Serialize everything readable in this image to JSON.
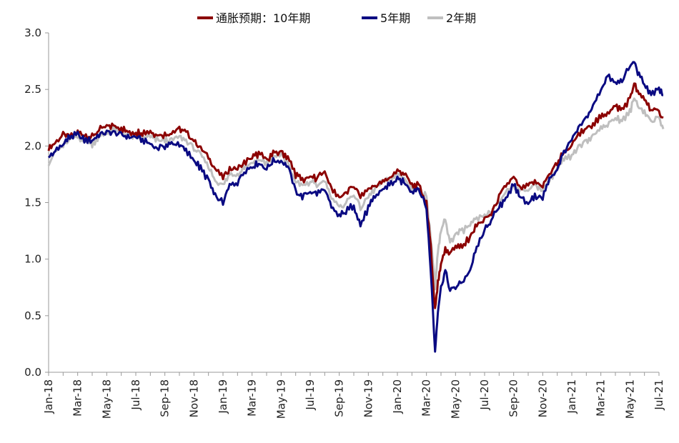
{
  "chart_data": {
    "type": "line",
    "title": "",
    "xlabel": "",
    "ylabel": "",
    "ylim": [
      0,
      3
    ],
    "yticks": [
      "0.0",
      "0.5",
      "1.0",
      "1.5",
      "2.0",
      "2.5",
      "3.0"
    ],
    "xlim": [
      "2018-01",
      "2021-07"
    ],
    "xticks": [
      "Jan-18",
      "Mar-18",
      "May-18",
      "Jul-18",
      "Sep-18",
      "Nov-18",
      "Jan-19",
      "Mar-19",
      "May-19",
      "Jul-19",
      "Sep-19",
      "Nov-19",
      "Jan-20",
      "Mar-20",
      "May-20",
      "Jul-20",
      "Sep-20",
      "Nov-20",
      "Jan-21",
      "Mar-21",
      "May-21",
      "Jul-21"
    ],
    "grid": false,
    "legend_position": "top-center",
    "series": [
      {
        "name": "通胀预期：10年期",
        "color": "#8b0000",
        "points": [
          [
            "2018-01-01",
            1.98
          ],
          [
            "2018-01-15",
            2.03
          ],
          [
            "2018-02-01",
            2.1
          ],
          [
            "2018-02-15",
            2.08
          ],
          [
            "2018-03-01",
            2.12
          ],
          [
            "2018-03-15",
            2.1
          ],
          [
            "2018-04-01",
            2.08
          ],
          [
            "2018-04-15",
            2.14
          ],
          [
            "2018-05-01",
            2.17
          ],
          [
            "2018-05-15",
            2.18
          ],
          [
            "2018-06-01",
            2.16
          ],
          [
            "2018-06-15",
            2.12
          ],
          [
            "2018-07-01",
            2.12
          ],
          [
            "2018-07-15",
            2.12
          ],
          [
            "2018-08-01",
            2.13
          ],
          [
            "2018-08-15",
            2.1
          ],
          [
            "2018-09-01",
            2.1
          ],
          [
            "2018-09-15",
            2.12
          ],
          [
            "2018-10-01",
            2.15
          ],
          [
            "2018-10-15",
            2.12
          ],
          [
            "2018-11-01",
            2.05
          ],
          [
            "2018-11-15",
            1.98
          ],
          [
            "2018-12-01",
            1.9
          ],
          [
            "2018-12-15",
            1.8
          ],
          [
            "2019-01-01",
            1.72
          ],
          [
            "2019-01-15",
            1.8
          ],
          [
            "2019-02-01",
            1.8
          ],
          [
            "2019-02-15",
            1.85
          ],
          [
            "2019-03-01",
            1.9
          ],
          [
            "2019-03-15",
            1.93
          ],
          [
            "2019-04-01",
            1.88
          ],
          [
            "2019-04-15",
            1.93
          ],
          [
            "2019-05-01",
            1.95
          ],
          [
            "2019-05-15",
            1.9
          ],
          [
            "2019-06-01",
            1.75
          ],
          [
            "2019-06-15",
            1.7
          ],
          [
            "2019-07-01",
            1.72
          ],
          [
            "2019-07-15",
            1.72
          ],
          [
            "2019-08-01",
            1.78
          ],
          [
            "2019-08-15",
            1.62
          ],
          [
            "2019-09-01",
            1.55
          ],
          [
            "2019-09-15",
            1.58
          ],
          [
            "2019-10-01",
            1.65
          ],
          [
            "2019-10-15",
            1.55
          ],
          [
            "2019-11-01",
            1.62
          ],
          [
            "2019-11-15",
            1.65
          ],
          [
            "2019-12-01",
            1.68
          ],
          [
            "2019-12-15",
            1.72
          ],
          [
            "2020-01-01",
            1.78
          ],
          [
            "2020-01-15",
            1.76
          ],
          [
            "2020-02-01",
            1.65
          ],
          [
            "2020-02-15",
            1.65
          ],
          [
            "2020-03-01",
            1.5
          ],
          [
            "2020-03-10",
            1.1
          ],
          [
            "2020-03-19",
            0.55
          ],
          [
            "2020-03-25",
            0.8
          ],
          [
            "2020-04-01",
            0.95
          ],
          [
            "2020-04-10",
            1.1
          ],
          [
            "2020-04-20",
            1.05
          ],
          [
            "2020-05-01",
            1.12
          ],
          [
            "2020-05-15",
            1.1
          ],
          [
            "2020-06-01",
            1.2
          ],
          [
            "2020-06-15",
            1.3
          ],
          [
            "2020-07-01",
            1.35
          ],
          [
            "2020-07-15",
            1.4
          ],
          [
            "2020-08-01",
            1.55
          ],
          [
            "2020-08-15",
            1.65
          ],
          [
            "2020-09-01",
            1.72
          ],
          [
            "2020-09-15",
            1.62
          ],
          [
            "2020-10-01",
            1.65
          ],
          [
            "2020-10-15",
            1.68
          ],
          [
            "2020-11-01",
            1.65
          ],
          [
            "2020-11-15",
            1.75
          ],
          [
            "2020-12-01",
            1.85
          ],
          [
            "2020-12-15",
            1.95
          ],
          [
            "2021-01-01",
            2.0
          ],
          [
            "2021-01-15",
            2.1
          ],
          [
            "2021-02-01",
            2.15
          ],
          [
            "2021-02-15",
            2.2
          ],
          [
            "2021-03-01",
            2.25
          ],
          [
            "2021-03-15",
            2.3
          ],
          [
            "2021-04-01",
            2.35
          ],
          [
            "2021-04-15",
            2.32
          ],
          [
            "2021-05-01",
            2.42
          ],
          [
            "2021-05-10",
            2.55
          ],
          [
            "2021-05-20",
            2.45
          ],
          [
            "2021-06-01",
            2.42
          ],
          [
            "2021-06-15",
            2.32
          ],
          [
            "2021-07-01",
            2.3
          ],
          [
            "2021-07-10",
            2.25
          ]
        ]
      },
      {
        "name": "5年期",
        "color": "#0a0a82",
        "points": [
          [
            "2018-01-01",
            1.9
          ],
          [
            "2018-01-15",
            1.95
          ],
          [
            "2018-02-01",
            2.02
          ],
          [
            "2018-02-15",
            2.08
          ],
          [
            "2018-03-01",
            2.1
          ],
          [
            "2018-03-15",
            2.05
          ],
          [
            "2018-04-01",
            2.05
          ],
          [
            "2018-04-15",
            2.1
          ],
          [
            "2018-05-01",
            2.12
          ],
          [
            "2018-05-15",
            2.12
          ],
          [
            "2018-06-01",
            2.1
          ],
          [
            "2018-06-15",
            2.08
          ],
          [
            "2018-07-01",
            2.08
          ],
          [
            "2018-07-15",
            2.05
          ],
          [
            "2018-08-01",
            2.02
          ],
          [
            "2018-08-15",
            1.98
          ],
          [
            "2018-09-01",
            2.0
          ],
          [
            "2018-09-15",
            2.02
          ],
          [
            "2018-10-01",
            2.02
          ],
          [
            "2018-10-15",
            1.95
          ],
          [
            "2018-11-01",
            1.88
          ],
          [
            "2018-11-15",
            1.8
          ],
          [
            "2018-12-01",
            1.7
          ],
          [
            "2018-12-15",
            1.55
          ],
          [
            "2019-01-01",
            1.5
          ],
          [
            "2019-01-15",
            1.65
          ],
          [
            "2019-02-01",
            1.68
          ],
          [
            "2019-02-15",
            1.78
          ],
          [
            "2019-03-01",
            1.82
          ],
          [
            "2019-03-15",
            1.85
          ],
          [
            "2019-04-01",
            1.8
          ],
          [
            "2019-04-15",
            1.87
          ],
          [
            "2019-05-01",
            1.87
          ],
          [
            "2019-05-15",
            1.82
          ],
          [
            "2019-06-01",
            1.6
          ],
          [
            "2019-06-15",
            1.55
          ],
          [
            "2019-07-01",
            1.6
          ],
          [
            "2019-07-15",
            1.58
          ],
          [
            "2019-08-01",
            1.62
          ],
          [
            "2019-08-15",
            1.45
          ],
          [
            "2019-09-01",
            1.38
          ],
          [
            "2019-09-15",
            1.42
          ],
          [
            "2019-10-01",
            1.48
          ],
          [
            "2019-10-15",
            1.3
          ],
          [
            "2019-11-01",
            1.45
          ],
          [
            "2019-11-15",
            1.55
          ],
          [
            "2019-12-01",
            1.62
          ],
          [
            "2019-12-15",
            1.66
          ],
          [
            "2020-01-01",
            1.7
          ],
          [
            "2020-01-15",
            1.68
          ],
          [
            "2020-02-01",
            1.6
          ],
          [
            "2020-02-15",
            1.63
          ],
          [
            "2020-03-01",
            1.45
          ],
          [
            "2020-03-10",
            0.9
          ],
          [
            "2020-03-19",
            0.18
          ],
          [
            "2020-03-25",
            0.55
          ],
          [
            "2020-04-01",
            0.75
          ],
          [
            "2020-04-10",
            0.9
          ],
          [
            "2020-04-20",
            0.72
          ],
          [
            "2020-05-01",
            0.75
          ],
          [
            "2020-05-15",
            0.8
          ],
          [
            "2020-06-01",
            0.9
          ],
          [
            "2020-06-15",
            1.1
          ],
          [
            "2020-07-01",
            1.25
          ],
          [
            "2020-07-15",
            1.35
          ],
          [
            "2020-08-01",
            1.45
          ],
          [
            "2020-08-15",
            1.55
          ],
          [
            "2020-09-01",
            1.65
          ],
          [
            "2020-09-15",
            1.55
          ],
          [
            "2020-10-01",
            1.5
          ],
          [
            "2020-10-15",
            1.55
          ],
          [
            "2020-11-01",
            1.55
          ],
          [
            "2020-11-15",
            1.7
          ],
          [
            "2020-12-01",
            1.8
          ],
          [
            "2020-12-15",
            1.95
          ],
          [
            "2021-01-01",
            2.05
          ],
          [
            "2021-01-15",
            2.15
          ],
          [
            "2021-02-01",
            2.25
          ],
          [
            "2021-02-15",
            2.35
          ],
          [
            "2021-03-01",
            2.5
          ],
          [
            "2021-03-15",
            2.62
          ],
          [
            "2021-04-01",
            2.55
          ],
          [
            "2021-04-15",
            2.58
          ],
          [
            "2021-05-01",
            2.7
          ],
          [
            "2021-05-10",
            2.75
          ],
          [
            "2021-05-20",
            2.62
          ],
          [
            "2021-06-01",
            2.55
          ],
          [
            "2021-06-15",
            2.45
          ],
          [
            "2021-07-01",
            2.5
          ],
          [
            "2021-07-10",
            2.45
          ]
        ]
      },
      {
        "name": "2年期",
        "color": "#bfbfbf",
        "points": [
          [
            "2018-01-01",
            1.85
          ],
          [
            "2018-01-15",
            1.95
          ],
          [
            "2018-02-01",
            2.0
          ],
          [
            "2018-02-15",
            2.05
          ],
          [
            "2018-03-01",
            2.08
          ],
          [
            "2018-03-15",
            2.05
          ],
          [
            "2018-04-01",
            2.02
          ],
          [
            "2018-04-15",
            2.08
          ],
          [
            "2018-05-01",
            2.12
          ],
          [
            "2018-05-15",
            2.15
          ],
          [
            "2018-06-01",
            2.12
          ],
          [
            "2018-06-15",
            2.1
          ],
          [
            "2018-07-01",
            2.08
          ],
          [
            "2018-07-15",
            2.08
          ],
          [
            "2018-08-01",
            2.08
          ],
          [
            "2018-08-15",
            2.05
          ],
          [
            "2018-09-01",
            2.05
          ],
          [
            "2018-09-15",
            2.05
          ],
          [
            "2018-10-01",
            2.08
          ],
          [
            "2018-10-15",
            2.05
          ],
          [
            "2018-11-01",
            1.98
          ],
          [
            "2018-11-15",
            1.92
          ],
          [
            "2018-12-01",
            1.82
          ],
          [
            "2018-12-15",
            1.7
          ],
          [
            "2019-01-01",
            1.65
          ],
          [
            "2019-01-15",
            1.75
          ],
          [
            "2019-02-01",
            1.75
          ],
          [
            "2019-02-15",
            1.82
          ],
          [
            "2019-03-01",
            1.85
          ],
          [
            "2019-03-15",
            1.88
          ],
          [
            "2019-04-01",
            1.85
          ],
          [
            "2019-04-15",
            1.9
          ],
          [
            "2019-05-01",
            1.92
          ],
          [
            "2019-05-15",
            1.85
          ],
          [
            "2019-06-01",
            1.68
          ],
          [
            "2019-06-15",
            1.65
          ],
          [
            "2019-07-01",
            1.68
          ],
          [
            "2019-07-15",
            1.65
          ],
          [
            "2019-08-01",
            1.7
          ],
          [
            "2019-08-15",
            1.55
          ],
          [
            "2019-09-01",
            1.45
          ],
          [
            "2019-09-15",
            1.5
          ],
          [
            "2019-10-01",
            1.58
          ],
          [
            "2019-10-15",
            1.45
          ],
          [
            "2019-11-01",
            1.55
          ],
          [
            "2019-11-15",
            1.62
          ],
          [
            "2019-12-01",
            1.68
          ],
          [
            "2019-12-15",
            1.7
          ],
          [
            "2020-01-01",
            1.75
          ],
          [
            "2020-01-15",
            1.72
          ],
          [
            "2020-02-01",
            1.62
          ],
          [
            "2020-02-15",
            1.62
          ],
          [
            "2020-03-01",
            1.55
          ],
          [
            "2020-03-10",
            1.2
          ],
          [
            "2020-03-19",
            0.75
          ],
          [
            "2020-03-25",
            1.05
          ],
          [
            "2020-04-01",
            1.25
          ],
          [
            "2020-04-10",
            1.35
          ],
          [
            "2020-04-20",
            1.15
          ],
          [
            "2020-05-01",
            1.22
          ],
          [
            "2020-05-15",
            1.25
          ],
          [
            "2020-06-01",
            1.3
          ],
          [
            "2020-06-15",
            1.35
          ],
          [
            "2020-07-01",
            1.38
          ],
          [
            "2020-07-15",
            1.42
          ],
          [
            "2020-08-01",
            1.5
          ],
          [
            "2020-08-15",
            1.6
          ],
          [
            "2020-09-01",
            1.65
          ],
          [
            "2020-09-15",
            1.6
          ],
          [
            "2020-10-01",
            1.62
          ],
          [
            "2020-10-15",
            1.65
          ],
          [
            "2020-11-01",
            1.62
          ],
          [
            "2020-11-15",
            1.7
          ],
          [
            "2020-12-01",
            1.8
          ],
          [
            "2020-12-15",
            1.88
          ],
          [
            "2021-01-01",
            1.9
          ],
          [
            "2021-01-15",
            2.0
          ],
          [
            "2021-02-01",
            2.05
          ],
          [
            "2021-02-15",
            2.1
          ],
          [
            "2021-03-01",
            2.15
          ],
          [
            "2021-03-15",
            2.2
          ],
          [
            "2021-04-01",
            2.25
          ],
          [
            "2021-04-15",
            2.22
          ],
          [
            "2021-05-01",
            2.3
          ],
          [
            "2021-05-10",
            2.42
          ],
          [
            "2021-05-20",
            2.35
          ],
          [
            "2021-06-01",
            2.3
          ],
          [
            "2021-06-15",
            2.22
          ],
          [
            "2021-07-01",
            2.25
          ],
          [
            "2021-07-10",
            2.15
          ]
        ]
      }
    ]
  }
}
